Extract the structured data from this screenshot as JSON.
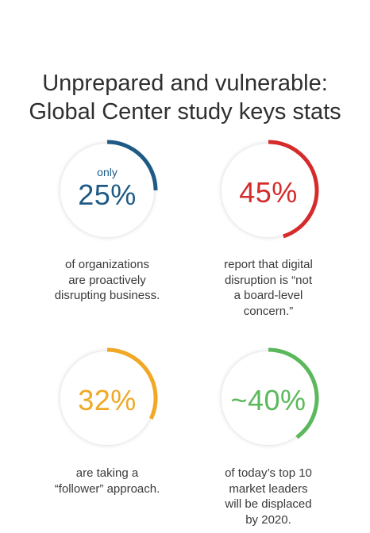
{
  "title_line1": "Unprepared and vulnerable:",
  "title_line2": "Global Center study keys stats",
  "stats": [
    {
      "prefix": "only",
      "value": "25%",
      "percent": 25,
      "color": "#1e5a85",
      "caption": [
        "of organizations",
        "are proactively",
        "disrupting business."
      ]
    },
    {
      "prefix": "",
      "value": "45%",
      "percent": 45,
      "color": "#d52b2b",
      "caption": [
        "report that digital",
        "disruption is “not",
        "a board-level",
        "concern.”"
      ]
    },
    {
      "prefix": "",
      "value": "32%",
      "percent": 32,
      "color": "#f0a825",
      "caption": [
        "are taking a",
        "“follower” approach."
      ]
    },
    {
      "prefix": "",
      "value": "~40%",
      "percent": 40,
      "color": "#5cb85c",
      "caption": [
        "of today’s top 10",
        "market leaders",
        "will be displaced",
        "by 2020."
      ]
    }
  ]
}
